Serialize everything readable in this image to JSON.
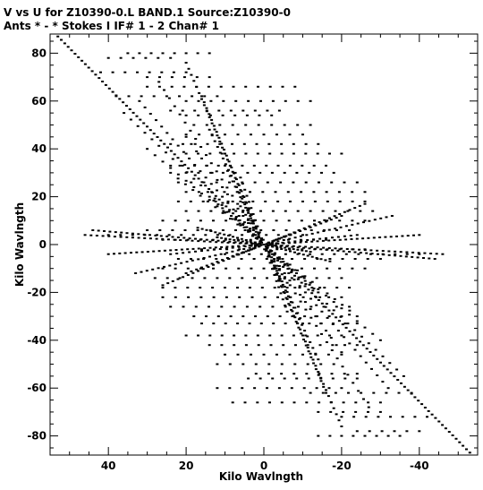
{
  "chart_data": {
    "type": "scatter",
    "header_line1": "V vs U for Z10390-0.L BAND.1   Source:Z10390-0",
    "header_line2": "Ants * - *     Stokes I   IF# 1 - 2   Chan# 1",
    "xlabel": "Kilo Wavlngth",
    "ylabel": "Kilo Wavlngth",
    "xlim": [
      55,
      -55
    ],
    "ylim": [
      -88,
      88
    ],
    "x_ticks": [
      40,
      20,
      0,
      -20,
      -40
    ],
    "x_tick_labels": [
      "40",
      "20",
      "0",
      "-20",
      "-40"
    ],
    "y_ticks": [
      80,
      60,
      40,
      20,
      0,
      -20,
      -40,
      -60,
      -80
    ],
    "y_tick_labels": [
      "80",
      "60",
      "40",
      "20",
      "0",
      "-20",
      "-40",
      "-60",
      "-80"
    ],
    "tracks": [
      {
        "from": [
          -53,
          -87
        ],
        "to": [
          53,
          87
        ],
        "n": 120
      },
      {
        "from": [
          -20,
          -76
        ],
        "to": [
          20,
          76
        ],
        "n": 60
      },
      {
        "from": [
          -16,
          -62
        ],
        "to": [
          16,
          62
        ],
        "n": 50
      },
      {
        "from": [
          -14,
          -48
        ],
        "to": [
          14,
          48
        ],
        "n": 40
      },
      {
        "from": [
          -10,
          -33
        ],
        "to": [
          10,
          33
        ],
        "n": 30
      },
      {
        "from": [
          -6,
          -16
        ],
        "to": [
          6,
          16
        ],
        "n": 18
      },
      {
        "from": [
          -44,
          -6
        ],
        "to": [
          44,
          6
        ],
        "n": 60
      },
      {
        "from": [
          -46,
          -4
        ],
        "to": [
          46,
          4
        ],
        "n": 60
      },
      {
        "from": [
          -40,
          4
        ],
        "to": [
          40,
          -4
        ],
        "n": 55
      },
      {
        "from": [
          -33,
          12
        ],
        "to": [
          33,
          -12
        ],
        "n": 45
      },
      {
        "from": [
          -26,
          17
        ],
        "to": [
          26,
          -17
        ],
        "n": 40
      },
      {
        "from": [
          -20,
          12
        ],
        "to": [
          20,
          -12
        ],
        "n": 30
      },
      {
        "from": [
          -24,
          4
        ],
        "to": [
          24,
          -4
        ],
        "n": 30
      },
      {
        "from": [
          -17,
          -7
        ],
        "to": [
          17,
          7
        ],
        "n": 30
      },
      {
        "from": [
          -12,
          -3
        ],
        "to": [
          12,
          3
        ],
        "n": 22
      },
      {
        "from": [
          -8,
          5
        ],
        "to": [
          8,
          -5
        ],
        "n": 14
      },
      {
        "from": [
          -14,
          -20
        ],
        "to": [
          14,
          20
        ],
        "n": 25
      },
      {
        "from": [
          -6,
          -28
        ],
        "to": [
          6,
          28
        ],
        "n": 22
      },
      {
        "from": [
          -32,
          -60
        ],
        "to": [
          32,
          60
        ],
        "n": 45
      },
      {
        "from": [
          -27,
          -68
        ],
        "to": [
          27,
          68
        ],
        "n": 40
      },
      {
        "from": [
          -36,
          -55
        ],
        "to": [
          36,
          55
        ],
        "n": 40
      },
      {
        "from": [
          -20,
          -45
        ],
        "to": [
          20,
          45
        ],
        "n": 30
      },
      {
        "from": [
          -30,
          -40
        ],
        "to": [
          30,
          40
        ],
        "n": 30
      },
      {
        "from": [
          -24,
          -30
        ],
        "to": [
          24,
          30
        ],
        "n": 25
      }
    ],
    "rows": [
      {
        "y": 80,
        "u_from": 35,
        "u_to": 14
      },
      {
        "y": 78,
        "u_from": 40,
        "u_to": 24
      },
      {
        "y": 72,
        "u_from": 42,
        "u_to": 20
      },
      {
        "y": 70,
        "u_from": 30,
        "u_to": 14
      },
      {
        "y": 66,
        "u_from": 30,
        "u_to": -8
      },
      {
        "y": 62,
        "u_from": 38,
        "u_to": 12
      },
      {
        "y": 60,
        "u_from": 20,
        "u_to": -12
      },
      {
        "y": 56,
        "u_from": 24,
        "u_to": -4
      },
      {
        "y": 54,
        "u_from": 20,
        "u_to": -2
      },
      {
        "y": 50,
        "u_from": 18,
        "u_to": -12
      },
      {
        "y": 46,
        "u_from": 20,
        "u_to": -10
      },
      {
        "y": 42,
        "u_from": 24,
        "u_to": -14
      },
      {
        "y": 38,
        "u_from": 20,
        "u_to": -20
      },
      {
        "y": 33,
        "u_from": 24,
        "u_to": -16
      },
      {
        "y": 30,
        "u_from": 20,
        "u_to": -18
      },
      {
        "y": 26,
        "u_from": 22,
        "u_to": -24
      },
      {
        "y": 22,
        "u_from": 20,
        "u_to": -26
      },
      {
        "y": 18,
        "u_from": 22,
        "u_to": -26
      },
      {
        "y": 14,
        "u_from": 20,
        "u_to": -28
      },
      {
        "y": 10,
        "u_from": 26,
        "u_to": -26
      },
      {
        "y": 6,
        "u_from": 30,
        "u_to": -22
      },
      {
        "y": 4,
        "u_from": 40,
        "u_to": -10
      },
      {
        "y": 2,
        "u_from": 26,
        "u_to": -16
      },
      {
        "y": -2,
        "u_from": 16,
        "u_to": -26
      },
      {
        "y": -4,
        "u_from": 10,
        "u_to": -40
      },
      {
        "y": -6,
        "u_from": 22,
        "u_to": -30
      },
      {
        "y": -10,
        "u_from": 26,
        "u_to": -26
      },
      {
        "y": -14,
        "u_from": 28,
        "u_to": -20
      },
      {
        "y": -18,
        "u_from": 26,
        "u_to": -22
      },
      {
        "y": -22,
        "u_from": 26,
        "u_to": -20
      },
      {
        "y": -26,
        "u_from": 24,
        "u_to": -22
      },
      {
        "y": -30,
        "u_from": 18,
        "u_to": -20
      },
      {
        "y": -33,
        "u_from": 16,
        "u_to": -24
      },
      {
        "y": -38,
        "u_from": 20,
        "u_to": -20
      },
      {
        "y": -42,
        "u_from": 14,
        "u_to": -24
      },
      {
        "y": -46,
        "u_from": 10,
        "u_to": -20
      },
      {
        "y": -50,
        "u_from": 12,
        "u_to": -18
      },
      {
        "y": -54,
        "u_from": 2,
        "u_to": -24
      },
      {
        "y": -56,
        "u_from": 4,
        "u_to": -24
      },
      {
        "y": -60,
        "u_from": 12,
        "u_to": -20
      },
      {
        "y": -62,
        "u_from": -12,
        "u_to": -38
      },
      {
        "y": -66,
        "u_from": 8,
        "u_to": -30
      },
      {
        "y": -70,
        "u_from": -14,
        "u_to": -30
      },
      {
        "y": -72,
        "u_from": -20,
        "u_to": -42
      },
      {
        "y": -78,
        "u_from": -24,
        "u_to": -40
      },
      {
        "y": -80,
        "u_from": -14,
        "u_to": -35
      }
    ]
  }
}
